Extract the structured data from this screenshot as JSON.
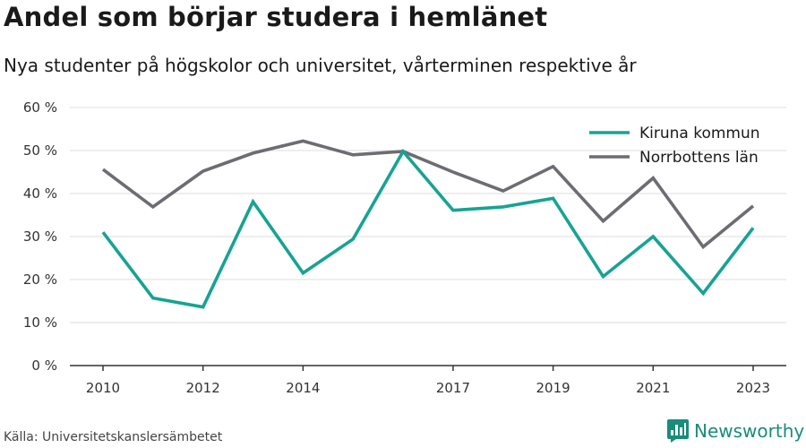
{
  "header": {
    "title": "Andel som börjar studera i hemlänet",
    "subtitle": "Nya studenter på högskolor och universitet, vårterminen respektive år"
  },
  "footer": {
    "source": "Källa: Universitetskanslersämbetet",
    "brand": "Newsworthy",
    "brand_icon": "bar-chart-logo-icon"
  },
  "colors": {
    "kiruna": "#17a393",
    "norrbotten": "#6d6c72",
    "grid": "#dcdcdc",
    "axis": "#333333",
    "brand": "#1a8c7a"
  },
  "chart_data": {
    "type": "line",
    "title": "Andel som börjar studera i hemlänet",
    "subtitle": "Nya studenter på högskolor och universitet, vårterminen respektive år",
    "xlabel": "",
    "ylabel": "",
    "x": [
      2010,
      2011,
      2012,
      2013,
      2014,
      2015,
      2016,
      2017,
      2018,
      2019,
      2020,
      2021,
      2022,
      2023
    ],
    "x_tick_labels": [
      "2010",
      "2012",
      "2014",
      "2017",
      "2019",
      "2021",
      "2023"
    ],
    "y_tick_labels": [
      "0 %",
      "10 %",
      "20 %",
      "30 %",
      "40 %",
      "50 %",
      "60 %"
    ],
    "ylim": [
      0,
      60
    ],
    "grid": true,
    "legend_position": "top-right",
    "series": [
      {
        "name": "Kiruna kommun",
        "color": "#17a393",
        "values": [
          31.0,
          15.7,
          13.6,
          38.1,
          21.5,
          29.4,
          49.8,
          36.1,
          36.9,
          38.9,
          20.7,
          30.0,
          16.8,
          32.0
        ]
      },
      {
        "name": "Norrbottens län",
        "color": "#6d6c72",
        "values": [
          45.6,
          36.9,
          45.2,
          49.4,
          52.2,
          49.0,
          49.8,
          45.0,
          40.6,
          46.3,
          33.6,
          43.6,
          27.6,
          37.1
        ]
      }
    ]
  }
}
